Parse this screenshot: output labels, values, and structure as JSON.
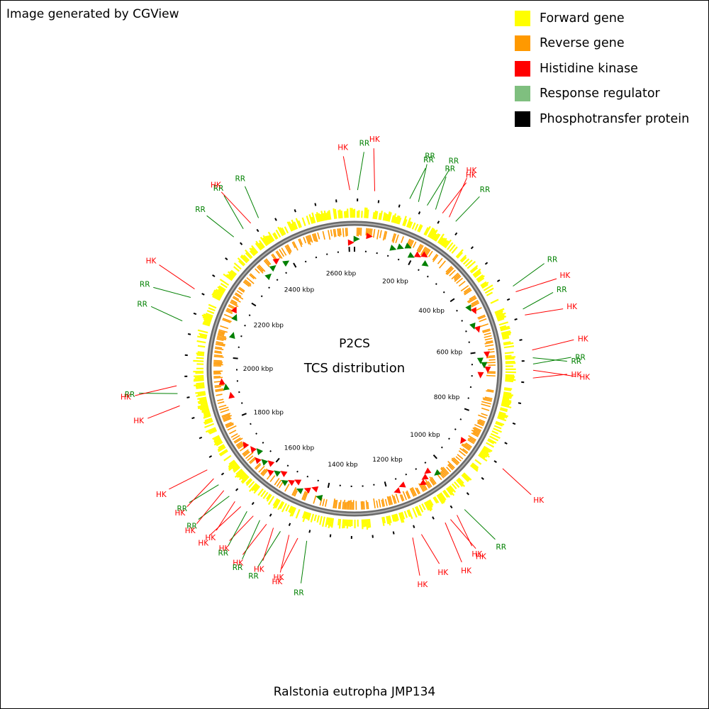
{
  "credit": "Image generated by CGView",
  "center_title": "P2CS",
  "center_subtitle": "TCS distribution",
  "organism": "Ralstonia eutropha JMP134",
  "legend": [
    {
      "label": "Forward gene",
      "color": "#ffff00"
    },
    {
      "label": "Reverse gene",
      "color": "#ff9900"
    },
    {
      "label": "Histidine kinase",
      "color": "#ff0000"
    },
    {
      "label": "Response regulator",
      "color": "#7fbf7f"
    },
    {
      "label": "Phosphotransfer protein",
      "color": "#000000"
    }
  ],
  "colors": {
    "hk": "#ff0000",
    "rr": "#008000",
    "backbone": "#808080",
    "forward": "#ffff00",
    "reverse": "#ff9900",
    "tick": "#000000"
  },
  "ruler_labels": [
    "200 kbp",
    "400 kbp",
    "600 kbp",
    "800 kbp",
    "1000 kbp",
    "1200 kbp",
    "1400 kbp",
    "1600 kbp",
    "1800 kbp",
    "2000 kbp",
    "2200 kbp",
    "2400 kbp",
    "2600 kbp"
  ],
  "features": [
    {
      "label": "HK",
      "type": "HK"
    },
    {
      "label": "RR",
      "type": "RR"
    },
    {
      "label": "HK",
      "type": "HK"
    },
    {
      "label": "RR",
      "type": "RR"
    },
    {
      "label": "RR",
      "type": "RR"
    },
    {
      "label": "RR",
      "type": "RR"
    },
    {
      "label": "RR",
      "type": "RR"
    },
    {
      "label": "HK",
      "type": "HK"
    },
    {
      "label": "HK",
      "type": "HK"
    },
    {
      "label": "RR",
      "type": "RR"
    },
    {
      "label": "RR",
      "type": "RR"
    },
    {
      "label": "HK",
      "type": "HK"
    },
    {
      "label": "RR",
      "type": "RR"
    },
    {
      "label": "HK",
      "type": "HK"
    },
    {
      "label": "HK",
      "type": "HK"
    },
    {
      "label": "RR",
      "type": "RR"
    },
    {
      "label": "RR",
      "type": "RR"
    },
    {
      "label": "HK",
      "type": "HK"
    },
    {
      "label": "HK",
      "type": "HK"
    },
    {
      "label": "HK",
      "type": "HK"
    },
    {
      "label": "RR",
      "type": "RR"
    },
    {
      "label": "HK",
      "type": "HK"
    },
    {
      "label": "HK",
      "type": "HK"
    },
    {
      "label": "HK",
      "type": "HK"
    },
    {
      "label": "HK",
      "type": "HK"
    },
    {
      "label": "HK",
      "type": "HK"
    },
    {
      "label": "RR",
      "type": "RR"
    },
    {
      "label": "HK",
      "type": "HK"
    },
    {
      "label": "HK",
      "type": "HK"
    },
    {
      "label": "RR",
      "type": "RR"
    },
    {
      "label": "HK",
      "type": "HK"
    },
    {
      "label": "HK",
      "type": "HK"
    },
    {
      "label": "RR",
      "type": "RR"
    },
    {
      "label": "HK",
      "type": "HK"
    },
    {
      "label": "RR",
      "type": "RR"
    },
    {
      "label": "HK",
      "type": "HK"
    },
    {
      "label": "HK",
      "type": "HK"
    },
    {
      "label": "RR",
      "type": "RR"
    },
    {
      "label": "HK",
      "type": "HK"
    },
    {
      "label": "RR",
      "type": "RR"
    },
    {
      "label": "HK",
      "type": "HK"
    },
    {
      "label": "HK",
      "type": "HK"
    },
    {
      "label": "HK",
      "type": "HK"
    },
    {
      "label": "RR",
      "type": "RR"
    },
    {
      "label": "HK",
      "type": "HK"
    },
    {
      "label": "RR",
      "type": "RR"
    },
    {
      "label": "RR",
      "type": "RR"
    },
    {
      "label": "HK",
      "type": "HK"
    },
    {
      "label": "RR",
      "type": "RR"
    },
    {
      "label": "RR",
      "type": "RR"
    },
    {
      "label": "HK",
      "type": "HK"
    },
    {
      "label": "RR",
      "type": "RR"
    }
  ]
}
